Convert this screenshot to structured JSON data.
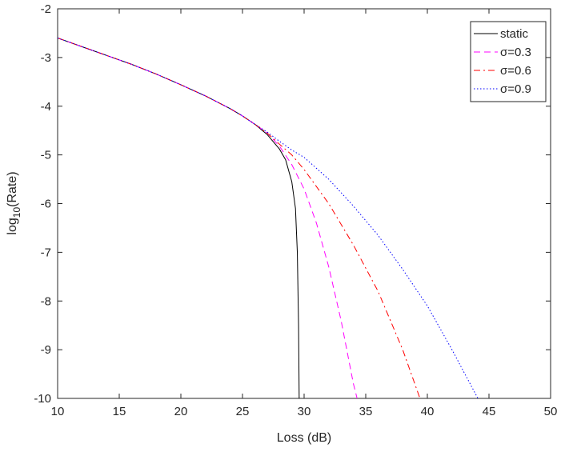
{
  "chart_data": {
    "type": "line",
    "xlabel": "Loss (dB)",
    "ylabel": {
      "base": "log",
      "sub": "10",
      "rest": "(Rate)"
    },
    "xlim": [
      10,
      50
    ],
    "xticks": [
      10,
      15,
      20,
      25,
      30,
      35,
      40,
      45,
      50
    ],
    "ylim": [
      -10,
      -2
    ],
    "yticks": [
      -10,
      -9,
      -8,
      -7,
      -6,
      -5,
      -4,
      -3,
      -2
    ],
    "grid": false,
    "legend": "northeast",
    "series": [
      {
        "name": "static",
        "color": "#000000",
        "linestyle": "-",
        "x": [
          10,
          12,
          14,
          16,
          18,
          20,
          22,
          24,
          25,
          26,
          27,
          28,
          28.5,
          29,
          29.3,
          29.45,
          29.55,
          29.6
        ],
        "values": [
          -2.6,
          -2.78,
          -2.96,
          -3.14,
          -3.34,
          -3.56,
          -3.79,
          -4.05,
          -4.2,
          -4.37,
          -4.58,
          -4.88,
          -5.1,
          -5.55,
          -6.1,
          -7,
          -8.5,
          -10
        ]
      },
      {
        "name": "σ=0.3",
        "color": "#ff00ff",
        "linestyle": "--",
        "x": [
          10,
          12,
          14,
          16,
          18,
          20,
          22,
          24,
          25,
          26,
          27,
          28,
          29,
          30,
          31,
          32,
          33,
          34,
          34.3
        ],
        "values": [
          -2.6,
          -2.78,
          -2.96,
          -3.14,
          -3.34,
          -3.56,
          -3.79,
          -4.05,
          -4.2,
          -4.37,
          -4.55,
          -4.82,
          -5.2,
          -5.7,
          -6.4,
          -7.3,
          -8.4,
          -9.7,
          -10
        ]
      },
      {
        "name": "σ=0.6",
        "color": "#ff0000",
        "linestyle": "-.",
        "x": [
          10,
          12,
          14,
          16,
          18,
          20,
          22,
          24,
          25,
          26,
          27,
          28,
          29,
          30,
          32,
          34,
          36,
          38,
          39.4
        ],
        "values": [
          -2.6,
          -2.78,
          -2.96,
          -3.14,
          -3.34,
          -3.56,
          -3.79,
          -4.05,
          -4.2,
          -4.37,
          -4.55,
          -4.78,
          -5.0,
          -5.3,
          -6.0,
          -6.85,
          -7.8,
          -9.0,
          -10
        ]
      },
      {
        "name": "σ=0.9",
        "color": "#0000ff",
        "linestyle": ":",
        "x": [
          10,
          12,
          14,
          16,
          18,
          20,
          22,
          24,
          25,
          26,
          27,
          28,
          29,
          30,
          32,
          34,
          36,
          38,
          40,
          42,
          44.1
        ],
        "values": [
          -2.6,
          -2.78,
          -2.96,
          -3.14,
          -3.34,
          -3.56,
          -3.79,
          -4.05,
          -4.2,
          -4.37,
          -4.53,
          -4.72,
          -4.9,
          -5.05,
          -5.5,
          -6.05,
          -6.65,
          -7.35,
          -8.1,
          -9.0,
          -10
        ]
      }
    ]
  }
}
